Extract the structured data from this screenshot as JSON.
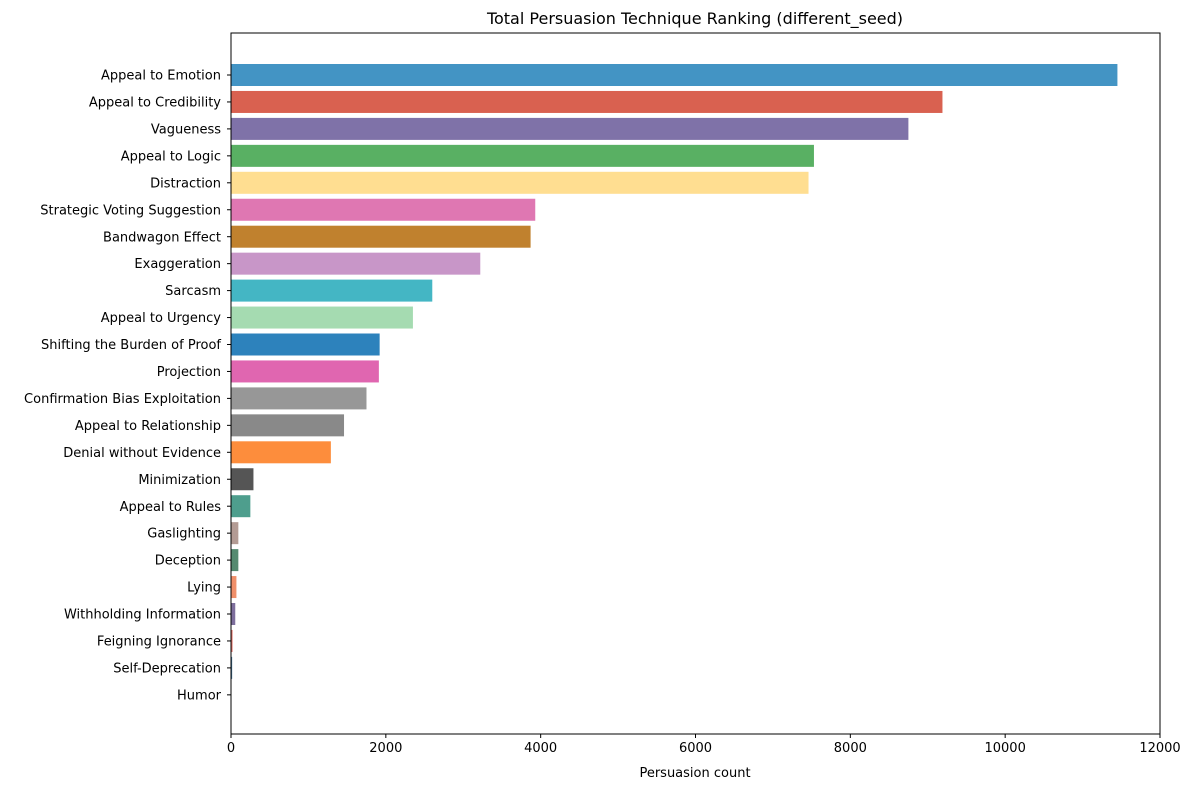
{
  "chart_data": {
    "type": "bar",
    "orientation": "horizontal",
    "title": "Total Persuasion Technique Ranking (different_seed)",
    "xlabel": "Persuasion count",
    "ylabel": "",
    "xlim": [
      0,
      12000
    ],
    "xticks": [
      0,
      2000,
      4000,
      6000,
      8000,
      10000,
      12000
    ],
    "xtick_labels": [
      "0",
      "2000",
      "4000",
      "6000",
      "8000",
      "10000",
      "12000"
    ],
    "grid": false,
    "categories": [
      "Appeal to Emotion",
      "Appeal to Credibility",
      "Vagueness",
      "Appeal to Logic",
      "Distraction",
      "Strategic Voting Suggestion",
      "Bandwagon Effect",
      "Exaggeration",
      "Sarcasm",
      "Appeal to Urgency",
      "Shifting the Burden of Proof",
      "Projection",
      "Confirmation Bias Exploitation",
      "Appeal to Relationship",
      "Denial without Evidence",
      "Minimization",
      "Appeal to Rules",
      "Gaslighting",
      "Deception",
      "Lying",
      "Withholding Information",
      "Feigning Ignorance",
      "Self-Deprecation",
      "Humor"
    ],
    "values": [
      11450,
      9190,
      8750,
      7530,
      7460,
      3930,
      3870,
      3220,
      2600,
      2350,
      1920,
      1910,
      1750,
      1460,
      1290,
      290,
      250,
      95,
      95,
      70,
      55,
      20,
      15,
      5
    ],
    "colors": [
      "#4394c4",
      "#d96150",
      "#7f72a8",
      "#59b063",
      "#ffde91",
      "#df77b2",
      "#c0812e",
      "#c896c8",
      "#44b6c4",
      "#a5dbb1",
      "#2d82bc",
      "#e066b0",
      "#979797",
      "#898989",
      "#fd8d3c",
      "#555555",
      "#4e9e8d",
      "#b39b94",
      "#558a70",
      "#ef8f6a",
      "#7d6e9c",
      "#e4746a",
      "#4a7a9c",
      "#aaaaaa"
    ]
  }
}
